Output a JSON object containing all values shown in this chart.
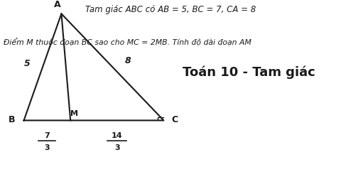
{
  "title_line1": "Tam giác ABC có AB = 5, BC = 7, CA = 8",
  "title_line2": "Điểm M thuộc đoạn BC sao cho MC = 2MB. Tính độ dài đoạn AM",
  "brand": "Toán 10 - Tam giác",
  "label_A": "A",
  "label_B": "B",
  "label_C": "C",
  "label_M": "M",
  "label_AB": "5",
  "label_CA": "8",
  "bm_num": "7",
  "bm_den": "3",
  "mc_num": "14",
  "mc_den": "3",
  "bg_color": "#ffffff",
  "triangle_color": "#1a1a1a",
  "text_color": "#1a1a1a",
  "brand_color": "#1a1a1a",
  "B": [
    0.07,
    0.3
  ],
  "C": [
    0.48,
    0.3
  ],
  "A": [
    0.18,
    0.92
  ],
  "t_M": 0.3333
}
